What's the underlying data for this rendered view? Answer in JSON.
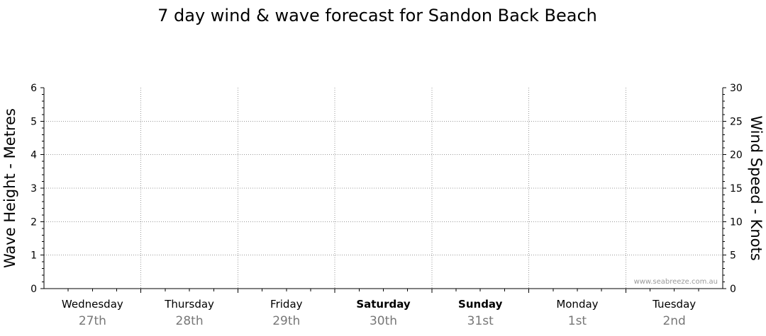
{
  "chart_data": {
    "type": "line",
    "title": "7 day wind & wave forecast for Sandon Back Beach",
    "ylabel_left": "Wave Height - Metres",
    "ylabel_right": "Wind Speed - Knots",
    "ylim_left": [
      0,
      6
    ],
    "ylim_right": [
      0,
      30
    ],
    "yticks_left": [
      "0",
      "1",
      "2",
      "3",
      "4",
      "5",
      "6"
    ],
    "yticks_right": [
      "0",
      "5",
      "10",
      "15",
      "20",
      "25",
      "30"
    ],
    "days": [
      {
        "name": "Wednesday",
        "date": "27th",
        "bold": false
      },
      {
        "name": "Thursday",
        "date": "28th",
        "bold": false
      },
      {
        "name": "Friday",
        "date": "29th",
        "bold": false
      },
      {
        "name": "Saturday",
        "date": "30th",
        "bold": true
      },
      {
        "name": "Sunday",
        "date": "31st",
        "bold": true
      },
      {
        "name": "Monday",
        "date": "1st",
        "bold": false
      },
      {
        "name": "Tuesday",
        "date": "2nd",
        "bold": false
      }
    ],
    "series": [],
    "grid": true,
    "watermark": "www.seabreeze.com.au"
  }
}
